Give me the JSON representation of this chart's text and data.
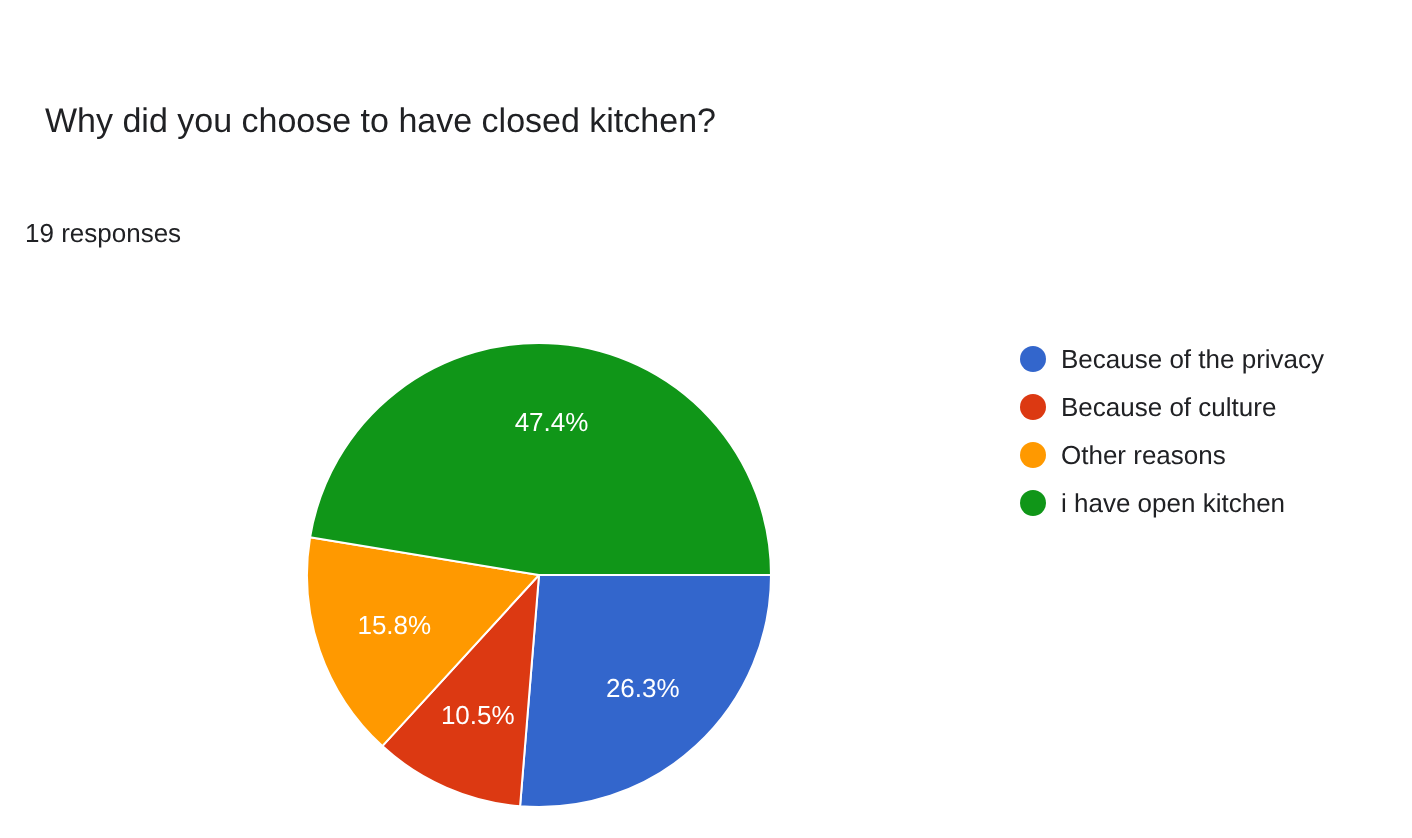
{
  "chart_data": {
    "type": "pie",
    "title": "Why did you choose to have closed kitchen?",
    "subtitle": "19 responses",
    "categories": [
      "Because of the privacy",
      "Because of culture",
      "Other reasons",
      "i have open kitchen"
    ],
    "values": [
      26.3,
      10.5,
      15.8,
      47.4
    ],
    "colors": [
      "#3366cc",
      "#dc3912",
      "#ff9900",
      "#109618"
    ],
    "value_labels": [
      "26.3%",
      "10.5%",
      "15.8%",
      "47.4%"
    ],
    "legend": "right"
  }
}
